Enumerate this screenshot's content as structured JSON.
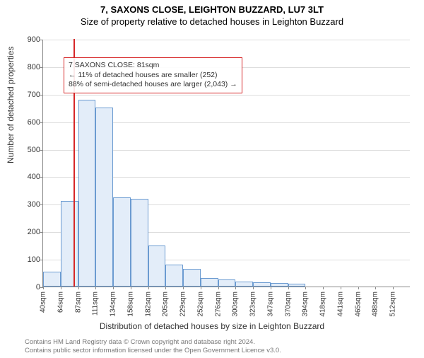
{
  "header": {
    "title1": "7, SAXONS CLOSE, LEIGHTON BUZZARD, LU7 3LT",
    "title2": "Size of property relative to detached houses in Leighton Buzzard"
  },
  "chart": {
    "type": "histogram",
    "ylabel": "Number of detached properties",
    "xlabel": "Distribution of detached houses by size in Leighton Buzzard",
    "x_tick_labels": [
      "40sqm",
      "64sqm",
      "87sqm",
      "111sqm",
      "134sqm",
      "158sqm",
      "182sqm",
      "205sqm",
      "229sqm",
      "252sqm",
      "276sqm",
      "300sqm",
      "323sqm",
      "347sqm",
      "370sqm",
      "394sqm",
      "418sqm",
      "441sqm",
      "465sqm",
      "488sqm",
      "512sqm"
    ],
    "y_ticks": [
      0,
      100,
      200,
      300,
      400,
      500,
      600,
      700,
      800,
      900
    ],
    "ylim": [
      0,
      900
    ],
    "bars": [
      55,
      310,
      680,
      650,
      325,
      320,
      150,
      80,
      65,
      30,
      25,
      18,
      15,
      12,
      10,
      0,
      0,
      0,
      0,
      0,
      0
    ],
    "bar_fill": "#e3edf9",
    "bar_border": "#6b9bd1",
    "grid_color": "#dddddd",
    "marker_color": "#d62728",
    "marker_x_index": 1.75,
    "title_fontsize": 13,
    "label_fontsize": 12,
    "tick_fontsize": 11
  },
  "annotation": {
    "line1": "7 SAXONS CLOSE: 81sqm",
    "line2": "← 11% of detached houses are smaller (252)",
    "line3": "88% of semi-detached houses are larger (2,043) →",
    "border_color": "#d62728"
  },
  "footer": {
    "line1": "Contains HM Land Registry data © Crown copyright and database right 2024.",
    "line2": "Contains public sector information licensed under the Open Government Licence v3.0."
  }
}
